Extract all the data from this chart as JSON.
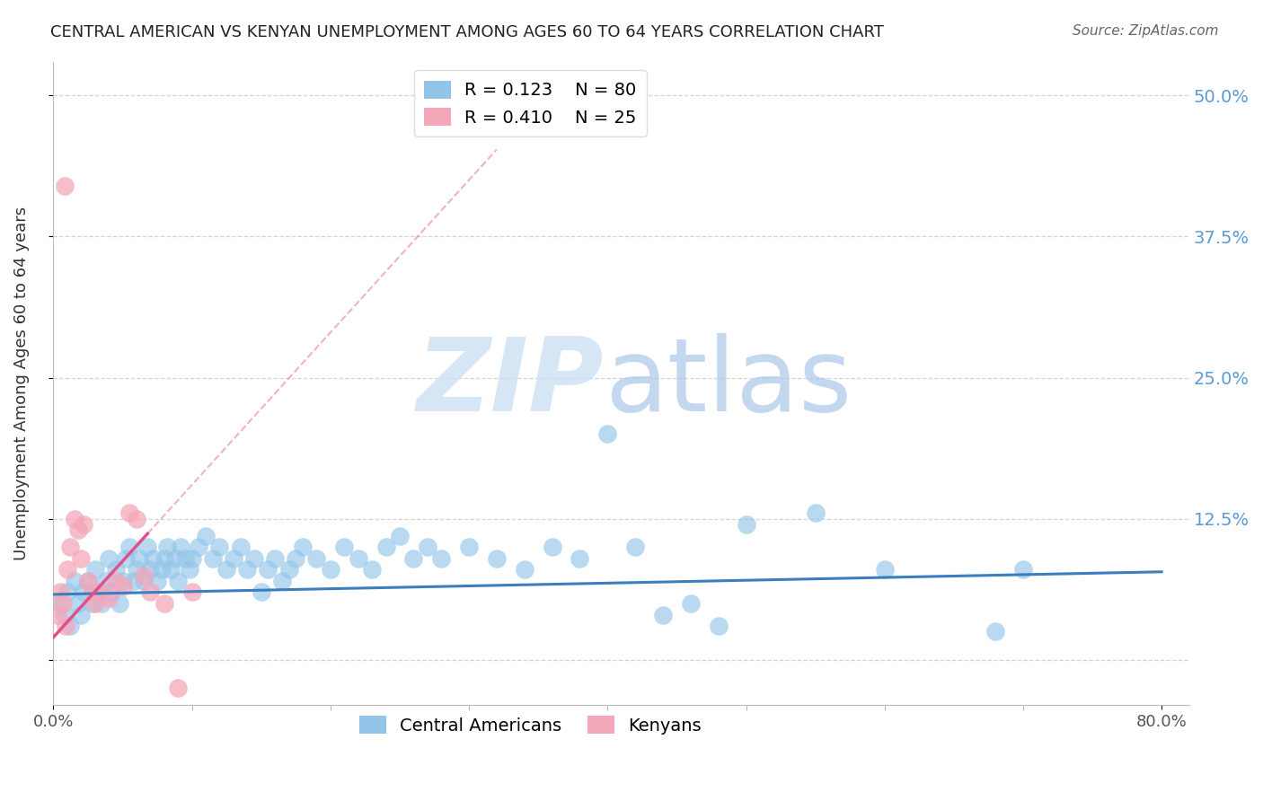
{
  "title": "CENTRAL AMERICAN VS KENYAN UNEMPLOYMENT AMONG AGES 60 TO 64 YEARS CORRELATION CHART",
  "source": "Source: ZipAtlas.com",
  "ylabel": "Unemployment Among Ages 60 to 64 years",
  "xlim": [
    0.0,
    0.82
  ],
  "ylim": [
    -0.04,
    0.53
  ],
  "yticks": [
    0.0,
    0.125,
    0.25,
    0.375,
    0.5
  ],
  "ytick_right_labels": [
    "",
    "12.5%",
    "25.0%",
    "37.5%",
    "50.0%"
  ],
  "xtick_positions": [
    0.0,
    0.8
  ],
  "xtick_labels": [
    "0.0%",
    "80.0%"
  ],
  "blue_scatter_color": "#93c5e8",
  "pink_scatter_color": "#f4a7b9",
  "blue_line_color": "#3a7ebe",
  "pink_line_color": "#e0508c",
  "axis_label_color": "#5b9bd5",
  "title_color": "#222222",
  "R_blue": 0.123,
  "N_blue": 80,
  "R_pink": 0.41,
  "N_pink": 25,
  "grid_color": "#d5d5d5",
  "watermark_zip_color": "#cde0f3",
  "watermark_atlas_color": "#aac8e8",
  "blue_points_x": [
    0.005,
    0.008,
    0.01,
    0.012,
    0.015,
    0.018,
    0.02,
    0.022,
    0.025,
    0.028,
    0.03,
    0.032,
    0.035,
    0.038,
    0.04,
    0.042,
    0.045,
    0.048,
    0.05,
    0.052,
    0.055,
    0.058,
    0.06,
    0.062,
    0.065,
    0.068,
    0.07,
    0.072,
    0.075,
    0.078,
    0.08,
    0.082,
    0.085,
    0.088,
    0.09,
    0.092,
    0.095,
    0.098,
    0.1,
    0.105,
    0.11,
    0.115,
    0.12,
    0.125,
    0.13,
    0.135,
    0.14,
    0.145,
    0.15,
    0.155,
    0.16,
    0.165,
    0.17,
    0.175,
    0.18,
    0.19,
    0.2,
    0.21,
    0.22,
    0.23,
    0.24,
    0.25,
    0.26,
    0.27,
    0.28,
    0.3,
    0.32,
    0.34,
    0.36,
    0.38,
    0.4,
    0.42,
    0.44,
    0.46,
    0.48,
    0.5,
    0.55,
    0.6,
    0.68,
    0.7
  ],
  "blue_points_y": [
    0.05,
    0.04,
    0.06,
    0.03,
    0.07,
    0.05,
    0.04,
    0.06,
    0.07,
    0.05,
    0.08,
    0.06,
    0.05,
    0.07,
    0.09,
    0.06,
    0.08,
    0.05,
    0.07,
    0.09,
    0.1,
    0.07,
    0.08,
    0.09,
    0.07,
    0.1,
    0.08,
    0.09,
    0.07,
    0.08,
    0.09,
    0.1,
    0.08,
    0.09,
    0.07,
    0.1,
    0.09,
    0.08,
    0.09,
    0.1,
    0.11,
    0.09,
    0.1,
    0.08,
    0.09,
    0.1,
    0.08,
    0.09,
    0.06,
    0.08,
    0.09,
    0.07,
    0.08,
    0.09,
    0.1,
    0.09,
    0.08,
    0.1,
    0.09,
    0.08,
    0.1,
    0.11,
    0.09,
    0.1,
    0.09,
    0.1,
    0.09,
    0.08,
    0.1,
    0.09,
    0.2,
    0.1,
    0.04,
    0.05,
    0.03,
    0.12,
    0.13,
    0.08,
    0.025,
    0.08
  ],
  "pink_points_x": [
    0.003,
    0.005,
    0.007,
    0.009,
    0.01,
    0.012,
    0.015,
    0.018,
    0.02,
    0.022,
    0.025,
    0.028,
    0.03,
    0.035,
    0.04,
    0.045,
    0.05,
    0.055,
    0.06,
    0.065,
    0.07,
    0.08,
    0.09,
    0.1,
    0.008
  ],
  "pink_points_y": [
    0.04,
    0.06,
    0.05,
    0.03,
    0.08,
    0.1,
    0.125,
    0.115,
    0.09,
    0.12,
    0.07,
    0.06,
    0.05,
    0.06,
    0.055,
    0.07,
    0.065,
    0.13,
    0.125,
    0.075,
    0.06,
    0.05,
    -0.025,
    0.06,
    0.42
  ]
}
